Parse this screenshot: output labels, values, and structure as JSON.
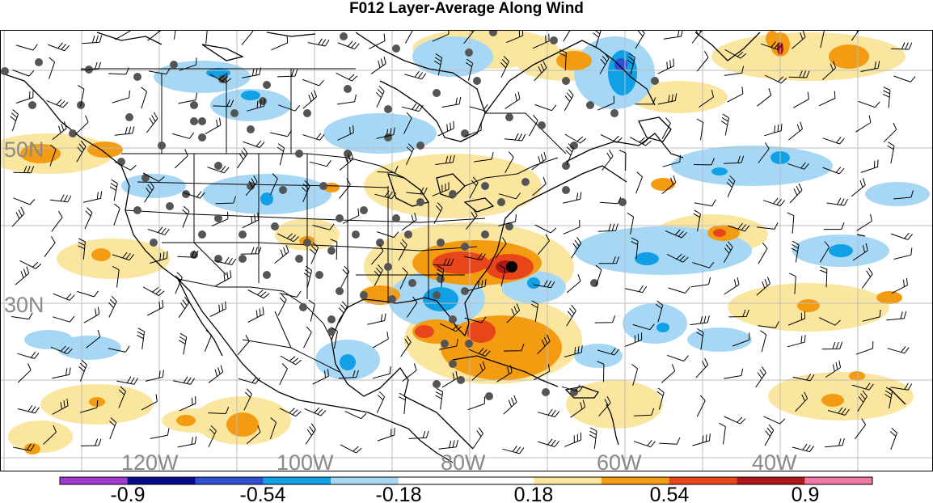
{
  "title": "F012 Layer-Average Along Wind",
  "map": {
    "land_border_color": "#000000",
    "grid_color": "#bdbdbd",
    "station_color": "#555555",
    "lat_labels": [
      "50N",
      "30N"
    ],
    "lon_labels": [
      "120W",
      "100W",
      "80W",
      "60W",
      "40W"
    ]
  },
  "colorbar": {
    "colors": [
      "#a13ad0",
      "#0a0a8c",
      "#2e4fd4",
      "#0fa0e6",
      "#a6d8f5",
      "#ffffff",
      "#ffffff",
      "#fbe6a0",
      "#f39c12",
      "#e8461a",
      "#b01818",
      "#f07aa5"
    ],
    "labels": [
      "-0.9",
      "-0.54",
      "-0.18",
      "0.18",
      "0.54",
      "0.9"
    ]
  }
}
